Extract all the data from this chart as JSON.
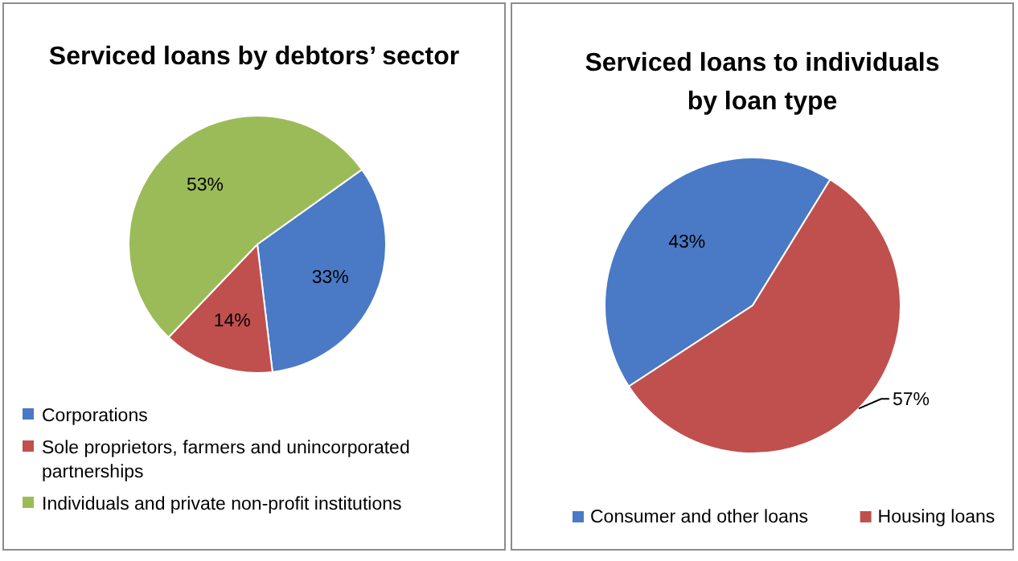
{
  "chart_data": [
    {
      "type": "pie",
      "title": "Serviced loans by debtors’ sector",
      "categories": [
        "Corporations",
        "Sole proprietors, farmers and unincorporated partnerships",
        "Individuals and private non-profit institutions"
      ],
      "values": [
        33,
        14,
        53
      ],
      "value_labels": [
        "33%",
        "14%",
        "53%"
      ],
      "colors": [
        "#4a7ac6",
        "#c0504d",
        "#9bbb59"
      ],
      "legend": "bottom"
    },
    {
      "type": "pie",
      "title": "Serviced loans to individuals by loan type",
      "categories": [
        "Consumer and other loans",
        "Housing loans"
      ],
      "values": [
        43,
        57
      ],
      "value_labels": [
        "43%",
        "57%"
      ],
      "colors": [
        "#4a7ac6",
        "#c0504d"
      ],
      "legend": "bottom"
    }
  ]
}
